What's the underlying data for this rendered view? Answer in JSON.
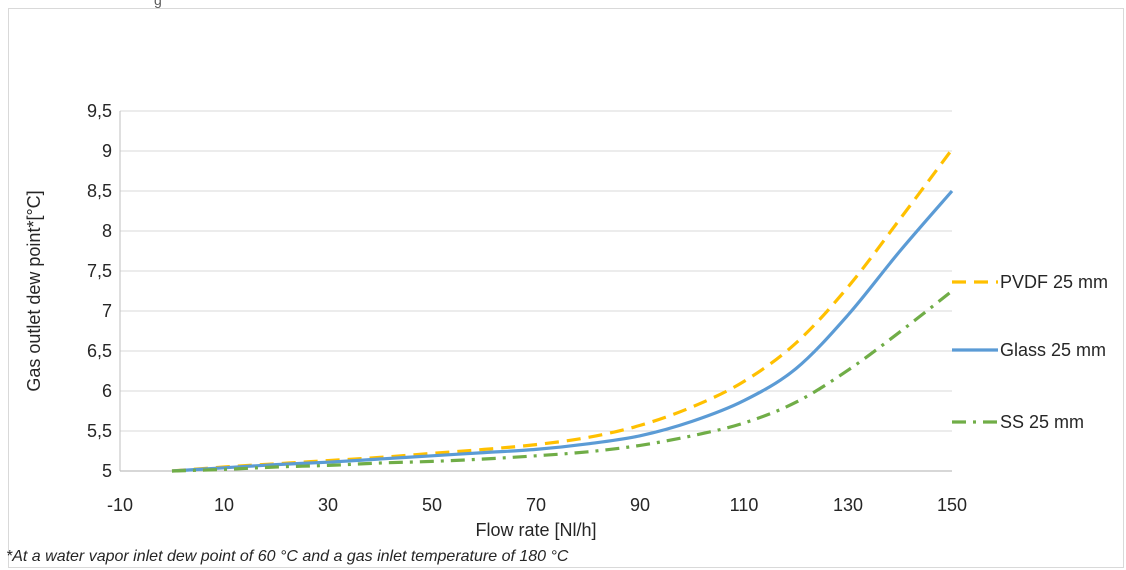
{
  "top_fragment": "g",
  "footnote": "*At a water vapor inlet dew point of 60 °C and a gas inlet temperature of 180 °C",
  "chart_data": {
    "type": "line",
    "xlabel": "Flow rate [Nl/h]",
    "ylabel": "Gas outlet dew point*[°C]",
    "xlim": [
      -10,
      150
    ],
    "ylim": [
      5,
      9.5
    ],
    "x_ticks": [
      "-10",
      "10",
      "30",
      "50",
      "70",
      "90",
      "110",
      "130",
      "150"
    ],
    "y_ticks": [
      "5",
      "5,5",
      "6",
      "6,5",
      "7",
      "7,5",
      "8",
      "8,5",
      "9",
      "9,5"
    ],
    "grid": "horizontal",
    "legend_position": "right",
    "series": [
      {
        "name": "PVDF 25 mm",
        "color": "#FFC000",
        "style": "dashed",
        "x": [
          0,
          10,
          20,
          30,
          40,
          50,
          60,
          70,
          80,
          90,
          100,
          110,
          120,
          130,
          140,
          150
        ],
        "y": [
          5.0,
          5.05,
          5.09,
          5.13,
          5.17,
          5.22,
          5.27,
          5.33,
          5.42,
          5.57,
          5.8,
          6.12,
          6.6,
          7.3,
          8.15,
          9.02
        ]
      },
      {
        "name": "Glass 25 mm",
        "color": "#5B9BD5",
        "style": "solid",
        "x": [
          0,
          10,
          20,
          30,
          40,
          50,
          60,
          70,
          80,
          90,
          100,
          110,
          120,
          130,
          140,
          150
        ],
        "y": [
          5.0,
          5.04,
          5.08,
          5.11,
          5.15,
          5.19,
          5.23,
          5.27,
          5.34,
          5.44,
          5.62,
          5.88,
          6.28,
          6.95,
          7.75,
          8.5
        ]
      },
      {
        "name": "SS 25 mm",
        "color": "#70AD47",
        "style": "dash-dot",
        "x": [
          0,
          10,
          20,
          30,
          40,
          50,
          60,
          70,
          80,
          90,
          100,
          110,
          120,
          130,
          140,
          150
        ],
        "y": [
          5.0,
          5.02,
          5.05,
          5.07,
          5.1,
          5.12,
          5.15,
          5.19,
          5.24,
          5.32,
          5.44,
          5.6,
          5.86,
          6.26,
          6.74,
          7.25
        ]
      }
    ]
  }
}
